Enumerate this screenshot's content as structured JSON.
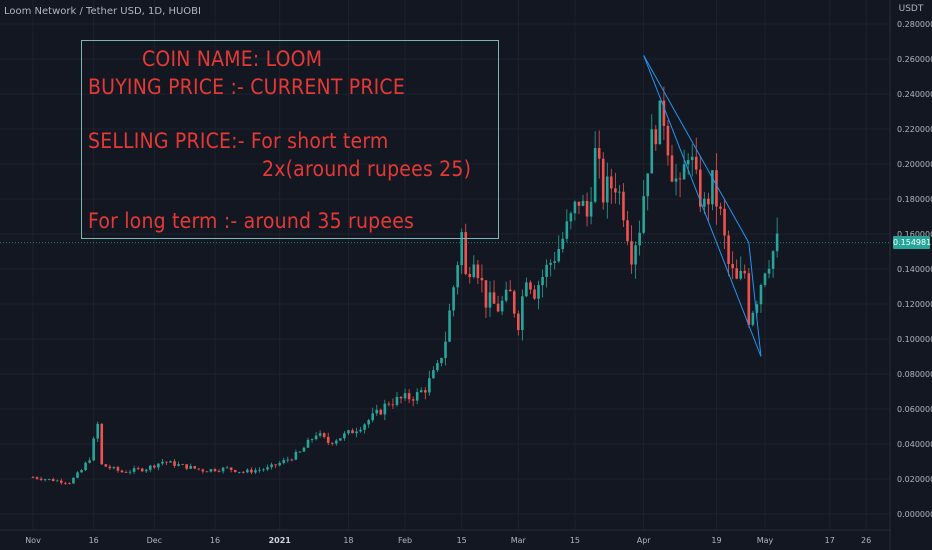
{
  "header": {
    "symbol": "Loom Network / Tether USD, 1D, HUOBI",
    "unit": "USDT"
  },
  "annotation": {
    "line1": "COIN NAME: LOOM",
    "line2": "BUYING PRICE :- CURRENT PRICE",
    "line3": "SELLING PRICE:-  For short term",
    "line4": "2x(around rupees 25)",
    "line5": "For long term :-  around 35 rupees"
  },
  "colors": {
    "up": "#26a69a",
    "down": "#ef5350",
    "text": "#e53935",
    "pattern": "#2196f3",
    "grid": "#1e222d"
  },
  "chart_data": {
    "type": "candlestick",
    "title": "",
    "xlabel": "",
    "ylabel": "",
    "ylim": [
      0,
      0.28
    ],
    "grid": true,
    "y_ticks": [
      "0.280000",
      "0.260000",
      "0.240000",
      "0.220000",
      "0.200000",
      "0.180000",
      "0.160000",
      "0.140000",
      "0.120000",
      "0.100000",
      "0.080000",
      "0.060000",
      "0.040000",
      "0.020000",
      "0.000000"
    ],
    "y_tick_values": [
      0.28,
      0.26,
      0.24,
      0.22,
      0.2,
      0.18,
      0.16,
      0.14,
      0.12,
      0.1,
      0.08,
      0.06,
      0.04,
      0.02,
      0.0
    ],
    "x_ticks": [
      {
        "label": "Nov",
        "day": 0
      },
      {
        "label": "16",
        "day": 15
      },
      {
        "label": "Dec",
        "day": 30
      },
      {
        "label": "16",
        "day": 45
      },
      {
        "label": "2021",
        "day": 61
      },
      {
        "label": "18",
        "day": 78
      },
      {
        "label": "Feb",
        "day": 92
      },
      {
        "label": "15",
        "day": 106
      },
      {
        "label": "Mar",
        "day": 120
      },
      {
        "label": "15",
        "day": 134
      },
      {
        "label": "Apr",
        "day": 151
      },
      {
        "label": "19",
        "day": 169
      },
      {
        "label": "May",
        "day": 181
      },
      {
        "label": "17",
        "day": 197
      },
      {
        "label": "26",
        "day": 206
      }
    ],
    "current_price": 0.154981,
    "current_price_label": "0.154981",
    "close_anchors": [
      [
        0,
        0.021
      ],
      [
        6,
        0.019
      ],
      [
        9,
        0.018
      ],
      [
        12,
        0.025
      ],
      [
        14,
        0.032
      ],
      [
        16,
        0.051
      ],
      [
        17,
        0.028
      ],
      [
        22,
        0.024
      ],
      [
        28,
        0.026
      ],
      [
        32,
        0.03
      ],
      [
        36,
        0.028
      ],
      [
        42,
        0.025
      ],
      [
        48,
        0.026
      ],
      [
        52,
        0.024
      ],
      [
        58,
        0.026
      ],
      [
        62,
        0.03
      ],
      [
        66,
        0.035
      ],
      [
        70,
        0.046
      ],
      [
        73,
        0.041
      ],
      [
        78,
        0.046
      ],
      [
        82,
        0.052
      ],
      [
        85,
        0.057
      ],
      [
        88,
        0.064
      ],
      [
        92,
        0.066
      ],
      [
        95,
        0.068
      ],
      [
        97,
        0.072
      ],
      [
        100,
        0.083
      ],
      [
        102,
        0.1
      ],
      [
        104,
        0.13
      ],
      [
        106,
        0.16
      ],
      [
        107,
        0.135
      ],
      [
        109,
        0.15
      ],
      [
        112,
        0.122
      ],
      [
        115,
        0.118
      ],
      [
        118,
        0.125
      ],
      [
        120,
        0.11
      ],
      [
        122,
        0.138
      ],
      [
        124,
        0.128
      ],
      [
        127,
        0.14
      ],
      [
        130,
        0.152
      ],
      [
        133,
        0.168
      ],
      [
        135,
        0.18
      ],
      [
        137,
        0.17
      ],
      [
        139,
        0.205
      ],
      [
        141,
        0.183
      ],
      [
        144,
        0.19
      ],
      [
        146,
        0.175
      ],
      [
        148,
        0.15
      ],
      [
        150,
        0.165
      ],
      [
        152,
        0.202
      ],
      [
        154,
        0.222
      ],
      [
        156,
        0.228
      ],
      [
        158,
        0.198
      ],
      [
        160,
        0.183
      ],
      [
        162,
        0.21
      ],
      [
        164,
        0.188
      ],
      [
        166,
        0.175
      ],
      [
        168,
        0.188
      ],
      [
        170,
        0.17
      ],
      [
        172,
        0.142
      ],
      [
        174,
        0.132
      ],
      [
        176,
        0.138
      ],
      [
        177,
        0.112
      ],
      [
        179,
        0.124
      ],
      [
        181,
        0.142
      ],
      [
        183,
        0.15
      ],
      [
        184,
        0.154981
      ]
    ],
    "pattern_lines": [
      {
        "from": {
          "day": 151,
          "price": 0.262
        },
        "to": {
          "day": 180,
          "price": 0.09
        }
      },
      {
        "from": {
          "day": 151,
          "price": 0.262
        },
        "to": {
          "day": 177,
          "price": 0.155
        }
      },
      {
        "from": {
          "day": 177,
          "price": 0.155
        },
        "to": {
          "day": 180,
          "price": 0.09
        }
      }
    ]
  }
}
